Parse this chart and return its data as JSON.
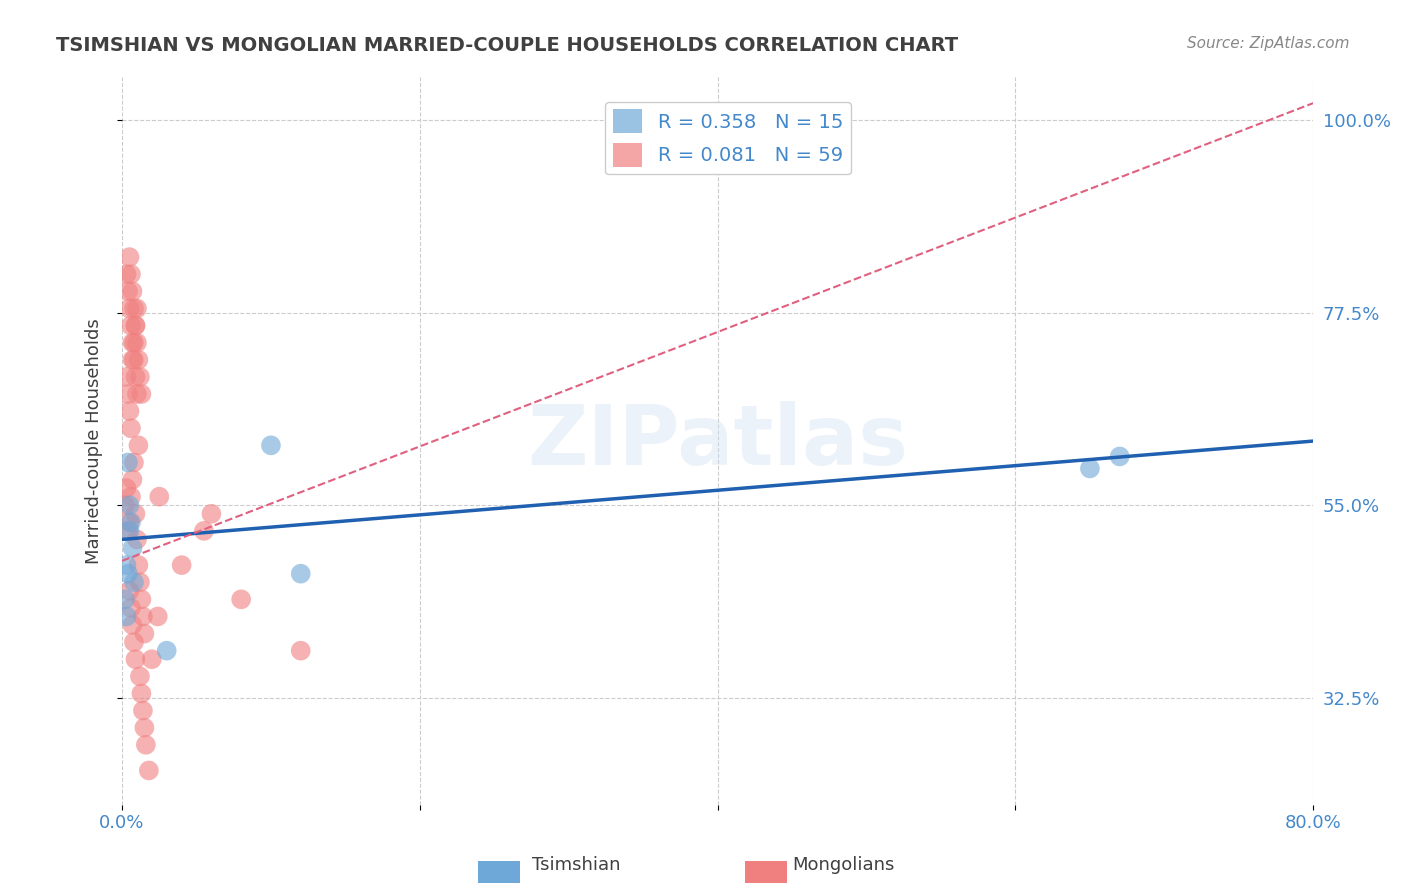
{
  "title": "TSIMSHIAN VS MONGOLIAN MARRIED-COUPLE HOUSEHOLDS CORRELATION CHART",
  "source_text": "Source: ZipAtlas.com",
  "ylabel": "Married-couple Households",
  "xlabel": "",
  "xlim": [
    0.0,
    0.8
  ],
  "ylim": [
    0.2,
    1.05
  ],
  "xticks": [
    0.0,
    0.2,
    0.4,
    0.6,
    0.8
  ],
  "xticklabels": [
    "0.0%",
    "",
    "",
    "",
    "80.0%"
  ],
  "yticks": [
    0.325,
    0.55,
    0.775,
    1.0
  ],
  "yticklabels": [
    "32.5%",
    "55.0%",
    "77.5%",
    "100.0%"
  ],
  "watermark": "ZIPatlas",
  "tsimshian_R": 0.358,
  "tsimshian_N": 15,
  "mongolian_R": 0.081,
  "mongolian_N": 59,
  "tsimshian_color": "#6ea8d8",
  "mongolian_color": "#f08080",
  "tsimshian_line_color": "#2060b0",
  "mongolian_line_color": "#e06080",
  "grid_color": "#cccccc",
  "title_color": "#404040",
  "axis_label_color": "#404040",
  "ytick_label_color": "#4488cc",
  "source_color": "#888888",
  "tsimshian_x": [
    0.005,
    0.007,
    0.003,
    0.004,
    0.006,
    0.004,
    0.003,
    0.002,
    0.008,
    0.005,
    0.1,
    0.12,
    0.65,
    0.67,
    0.03
  ],
  "tsimshian_y": [
    0.55,
    0.5,
    0.42,
    0.47,
    0.53,
    0.6,
    0.48,
    0.44,
    0.46,
    0.52,
    0.62,
    0.47,
    0.593,
    0.607,
    0.38
  ],
  "mongolian_x": [
    0.002,
    0.003,
    0.004,
    0.005,
    0.006,
    0.007,
    0.008,
    0.009,
    0.01,
    0.011,
    0.012,
    0.013,
    0.014,
    0.015,
    0.003,
    0.004,
    0.005,
    0.006,
    0.007,
    0.008,
    0.009,
    0.01,
    0.011,
    0.003,
    0.004,
    0.005,
    0.006,
    0.007,
    0.008,
    0.009,
    0.01,
    0.005,
    0.006,
    0.007,
    0.008,
    0.009,
    0.01,
    0.011,
    0.012,
    0.013,
    0.005,
    0.006,
    0.007,
    0.008,
    0.009,
    0.012,
    0.013,
    0.014,
    0.015,
    0.016,
    0.018,
    0.025,
    0.02,
    0.024,
    0.04,
    0.055,
    0.06,
    0.08,
    0.12
  ],
  "mongolian_y": [
    0.55,
    0.57,
    0.52,
    0.53,
    0.56,
    0.58,
    0.6,
    0.54,
    0.51,
    0.48,
    0.46,
    0.44,
    0.42,
    0.4,
    0.7,
    0.68,
    0.66,
    0.64,
    0.72,
    0.74,
    0.76,
    0.78,
    0.62,
    0.82,
    0.8,
    0.78,
    0.76,
    0.74,
    0.72,
    0.7,
    0.68,
    0.84,
    0.82,
    0.8,
    0.78,
    0.76,
    0.74,
    0.72,
    0.7,
    0.68,
    0.45,
    0.43,
    0.41,
    0.39,
    0.37,
    0.35,
    0.33,
    0.31,
    0.29,
    0.27,
    0.24,
    0.56,
    0.37,
    0.42,
    0.48,
    0.52,
    0.54,
    0.44,
    0.38
  ],
  "legend_items": [
    {
      "label": "R = 0.358   N = 15",
      "color": "#6ea8d8"
    },
    {
      "label": "R = 0.081   N = 59",
      "color": "#f08080"
    }
  ]
}
